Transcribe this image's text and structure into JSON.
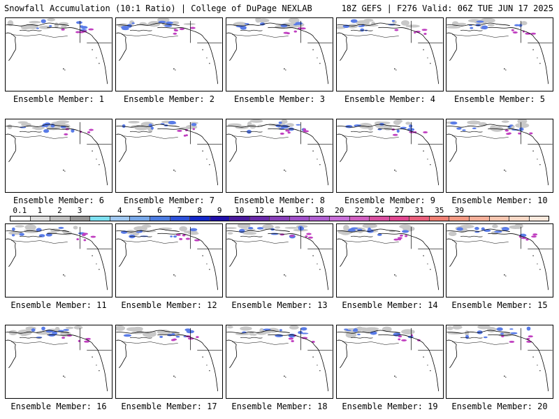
{
  "header": {
    "title_left": "Snowfall Accumulation (10:1 Ratio) | College of DuPage NEXLAB",
    "title_right": "18Z GEFS | F276 Valid: 06Z TUE JUN 17 2025"
  },
  "legend": {
    "ticks": [
      "0.1",
      "1",
      "2",
      "3",
      "4",
      "5",
      "6",
      "7",
      "8",
      "9",
      "10",
      "12",
      "14",
      "16",
      "18",
      "20",
      "22",
      "24",
      "27",
      "31",
      "35",
      "39"
    ],
    "colors": [
      "#ffffff",
      "#dcdcdc",
      "#bebebe",
      "#969696",
      "#7ee0f0",
      "#a0c8f0",
      "#78a8e8",
      "#4c7ce0",
      "#2e52d8",
      "#1428c8",
      "#2010a8",
      "#4a1a9c",
      "#6a2aa8",
      "#8840b8",
      "#a050c8",
      "#b060d0",
      "#c870d8",
      "#d060c0",
      "#d850a0",
      "#e04890",
      "#e8607c",
      "#ee8074",
      "#f29a84",
      "#f4b09a",
      "#f6c6b0",
      "#f8d8c6",
      "#fae8dc"
    ]
  },
  "members": [
    {
      "label": "Ensemble Member: 1"
    },
    {
      "label": "Ensemble Member: 2"
    },
    {
      "label": "Ensemble Member: 3"
    },
    {
      "label": "Ensemble Member: 4"
    },
    {
      "label": "Ensemble Member: 5"
    },
    {
      "label": "Ensemble Member: 6"
    },
    {
      "label": "Ensemble Member: 7"
    },
    {
      "label": "Ensemble Member: 8"
    },
    {
      "label": "Ensemble Member: 9"
    },
    {
      "label": "Ensemble Member: 10"
    },
    {
      "label": "Ensemble Member: 11"
    },
    {
      "label": "Ensemble Member: 12"
    },
    {
      "label": "Ensemble Member: 13"
    },
    {
      "label": "Ensemble Member: 14"
    },
    {
      "label": "Ensemble Member: 15"
    },
    {
      "label": "Ensemble Member: 16"
    },
    {
      "label": "Ensemble Member: 17"
    },
    {
      "label": "Ensemble Member: 18"
    },
    {
      "label": "Ensemble Member: 19"
    },
    {
      "label": "Ensemble Member: 20"
    }
  ]
}
